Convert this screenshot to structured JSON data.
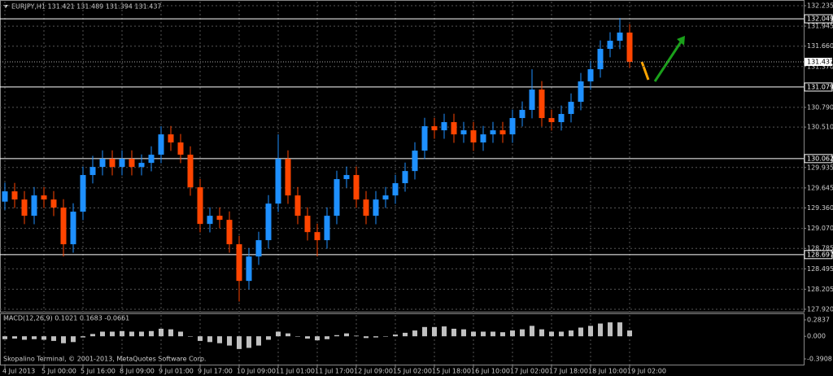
{
  "chart_data": [
    {
      "type": "candlestick",
      "title": "EURJPY,H1  131.421 131.489 131.394 131.437",
      "categories": [
        "4 Jul 2013",
        null,
        null,
        null,
        "5 Jul 00:00",
        null,
        null,
        null,
        "5 Jul 16:00",
        null,
        null,
        null,
        "8 Jul 09:00",
        null,
        null,
        null,
        "9 Jul 01:00",
        null,
        null,
        null,
        "9 Jul 17:00",
        null,
        null,
        null,
        "10 Jul 09:00",
        null,
        null,
        null,
        "11 Jul 01:00",
        null,
        null,
        null,
        "11 Jul 17:00",
        null,
        null,
        null,
        "12 Jul 09:00",
        null,
        null,
        null,
        "15 Jul 02:00",
        null,
        null,
        null,
        "15 Jul 18:00",
        null,
        null,
        null,
        "16 Jul 10:00",
        null,
        null,
        null,
        "17 Jul 02:00",
        null,
        null,
        null,
        "17 Jul 18:00",
        null,
        null,
        null,
        "18 Jul 10:00",
        null,
        null,
        null,
        "19 Jul 02:00"
      ],
      "open": [
        129.45,
        129.596,
        129.48,
        129.249,
        129.538,
        129.48,
        129.365,
        128.844,
        129.307,
        129.828,
        129.943,
        130.059,
        129.943,
        130.059,
        129.943,
        130.001,
        130.117,
        130.406,
        130.291,
        130.117,
        129.654,
        129.133,
        129.249,
        129.191,
        128.844,
        128.323,
        128.67,
        128.902,
        129.422,
        130.059,
        129.538,
        129.249,
        129.017,
        128.902,
        129.249,
        129.77,
        129.828,
        129.48,
        129.249,
        129.48,
        129.538,
        129.712,
        129.885,
        130.175,
        130.522,
        130.464,
        130.58,
        130.406,
        130.464,
        130.291,
        130.406,
        130.464,
        130.406,
        130.638,
        130.754,
        131.043,
        130.638,
        130.58,
        130.696,
        130.869,
        131.159,
        131.332,
        131.622,
        131.737,
        131.853
      ],
      "high": [
        129.72,
        129.716,
        129.6,
        129.658,
        129.658,
        129.6,
        129.485,
        129.427,
        129.948,
        130.1,
        130.179,
        130.179,
        130.179,
        130.179,
        130.121,
        130.237,
        130.522,
        130.526,
        130.411,
        130.237,
        129.774,
        129.369,
        129.369,
        129.311,
        128.964,
        128.79,
        129.022,
        129.542,
        130.406,
        130.179,
        129.658,
        129.369,
        129.137,
        129.369,
        129.89,
        129.948,
        129.948,
        129.6,
        129.6,
        129.658,
        129.832,
        130.005,
        130.295,
        130.642,
        130.642,
        130.7,
        130.7,
        130.584,
        130.584,
        130.526,
        130.584,
        130.584,
        130.758,
        130.874,
        131.332,
        131.163,
        130.758,
        130.816,
        130.989,
        131.279,
        131.452,
        131.742,
        131.857,
        132.061,
        131.973
      ],
      "low": [
        129.33,
        129.36,
        129.13,
        129.129,
        129.36,
        129.245,
        128.67,
        128.724,
        129.187,
        129.708,
        129.823,
        129.823,
        129.823,
        129.823,
        129.823,
        129.881,
        129.997,
        130.171,
        129.997,
        129.534,
        129.013,
        129.013,
        129.071,
        128.724,
        128.03,
        128.203,
        128.55,
        128.782,
        129.302,
        129.418,
        129.129,
        128.897,
        128.67,
        128.782,
        129.129,
        129.65,
        129.36,
        129.129,
        129.129,
        129.36,
        129.418,
        129.592,
        129.765,
        130.055,
        130.344,
        130.344,
        130.286,
        130.286,
        130.171,
        130.171,
        130.286,
        130.286,
        130.286,
        130.518,
        130.634,
        130.518,
        130.46,
        130.46,
        130.576,
        130.749,
        131.039,
        131.212,
        131.502,
        131.617,
        131.35
      ],
      "close": [
        129.596,
        129.48,
        129.249,
        129.538,
        129.48,
        129.365,
        128.844,
        129.307,
        129.828,
        129.943,
        130.059,
        129.943,
        130.059,
        129.943,
        130.001,
        130.117,
        130.406,
        130.291,
        130.117,
        129.654,
        129.133,
        129.249,
        129.191,
        128.844,
        128.323,
        128.67,
        128.902,
        129.422,
        130.059,
        129.538,
        129.249,
        129.017,
        128.902,
        129.249,
        129.77,
        129.828,
        129.48,
        129.249,
        129.48,
        129.538,
        129.712,
        129.885,
        130.175,
        130.522,
        130.464,
        130.58,
        130.406,
        130.464,
        130.291,
        130.406,
        130.464,
        130.406,
        130.638,
        130.754,
        131.043,
        130.638,
        130.58,
        130.696,
        130.869,
        131.159,
        131.332,
        131.622,
        131.737,
        131.853,
        131.437
      ],
      "up_color": "#1e90ff",
      "down_color": "#ff4500",
      "ylim": [
        127.885,
        132.293
      ],
      "yticks": [
        132.235,
        131.945,
        {
          "value": 131.66,
          "label": "131.660"
        },
        {
          "value": 131.37,
          "label": "131.370"
        },
        {
          "value": 130.79,
          "label": "130.790"
        },
        {
          "value": 130.51,
          "label": "130.510"
        },
        129.935,
        129.645,
        {
          "value": 129.36,
          "label": "129.360"
        },
        {
          "value": 129.07,
          "label": "129.070"
        },
        128.785,
        128.495,
        128.205,
        {
          "value": 127.92,
          "label": "127.920"
        }
      ],
      "levels": [
        132.049,
        131.079,
        130.062,
        128.697
      ],
      "last_price": 131.437,
      "grid": true
    },
    {
      "type": "bar",
      "title": "MACD(12,26,9) 0.1021 0.1683 -0.0661",
      "values": [
        -0.05,
        -0.04,
        -0.06,
        -0.05,
        -0.06,
        -0.08,
        -0.12,
        -0.1,
        -0.02,
        0.04,
        0.08,
        0.08,
        0.09,
        0.08,
        0.08,
        0.09,
        0.13,
        0.12,
        0.08,
        0.0,
        -0.08,
        -0.1,
        -0.12,
        -0.16,
        -0.22,
        -0.2,
        -0.16,
        -0.06,
        0.08,
        0.05,
        0.0,
        -0.04,
        -0.07,
        -0.05,
        0.02,
        0.05,
        0.01,
        -0.03,
        -0.02,
        0.0,
        0.03,
        0.06,
        0.1,
        0.16,
        0.16,
        0.17,
        0.13,
        0.12,
        0.08,
        0.08,
        0.08,
        0.07,
        0.1,
        0.12,
        0.18,
        0.12,
        0.08,
        0.08,
        0.1,
        0.15,
        0.18,
        0.22,
        0.24,
        0.24,
        0.1
      ],
      "color": "#c0c0c0",
      "ylim": [
        -0.489,
        0.382
      ],
      "yticks": [
        0.2837,
        {
          "value": 0,
          "label": "0.000"
        },
        -0.3908
      ]
    }
  ],
  "footer": "Skopalino Terminal, © 2001-2013, MetaQuotes Software Corp."
}
